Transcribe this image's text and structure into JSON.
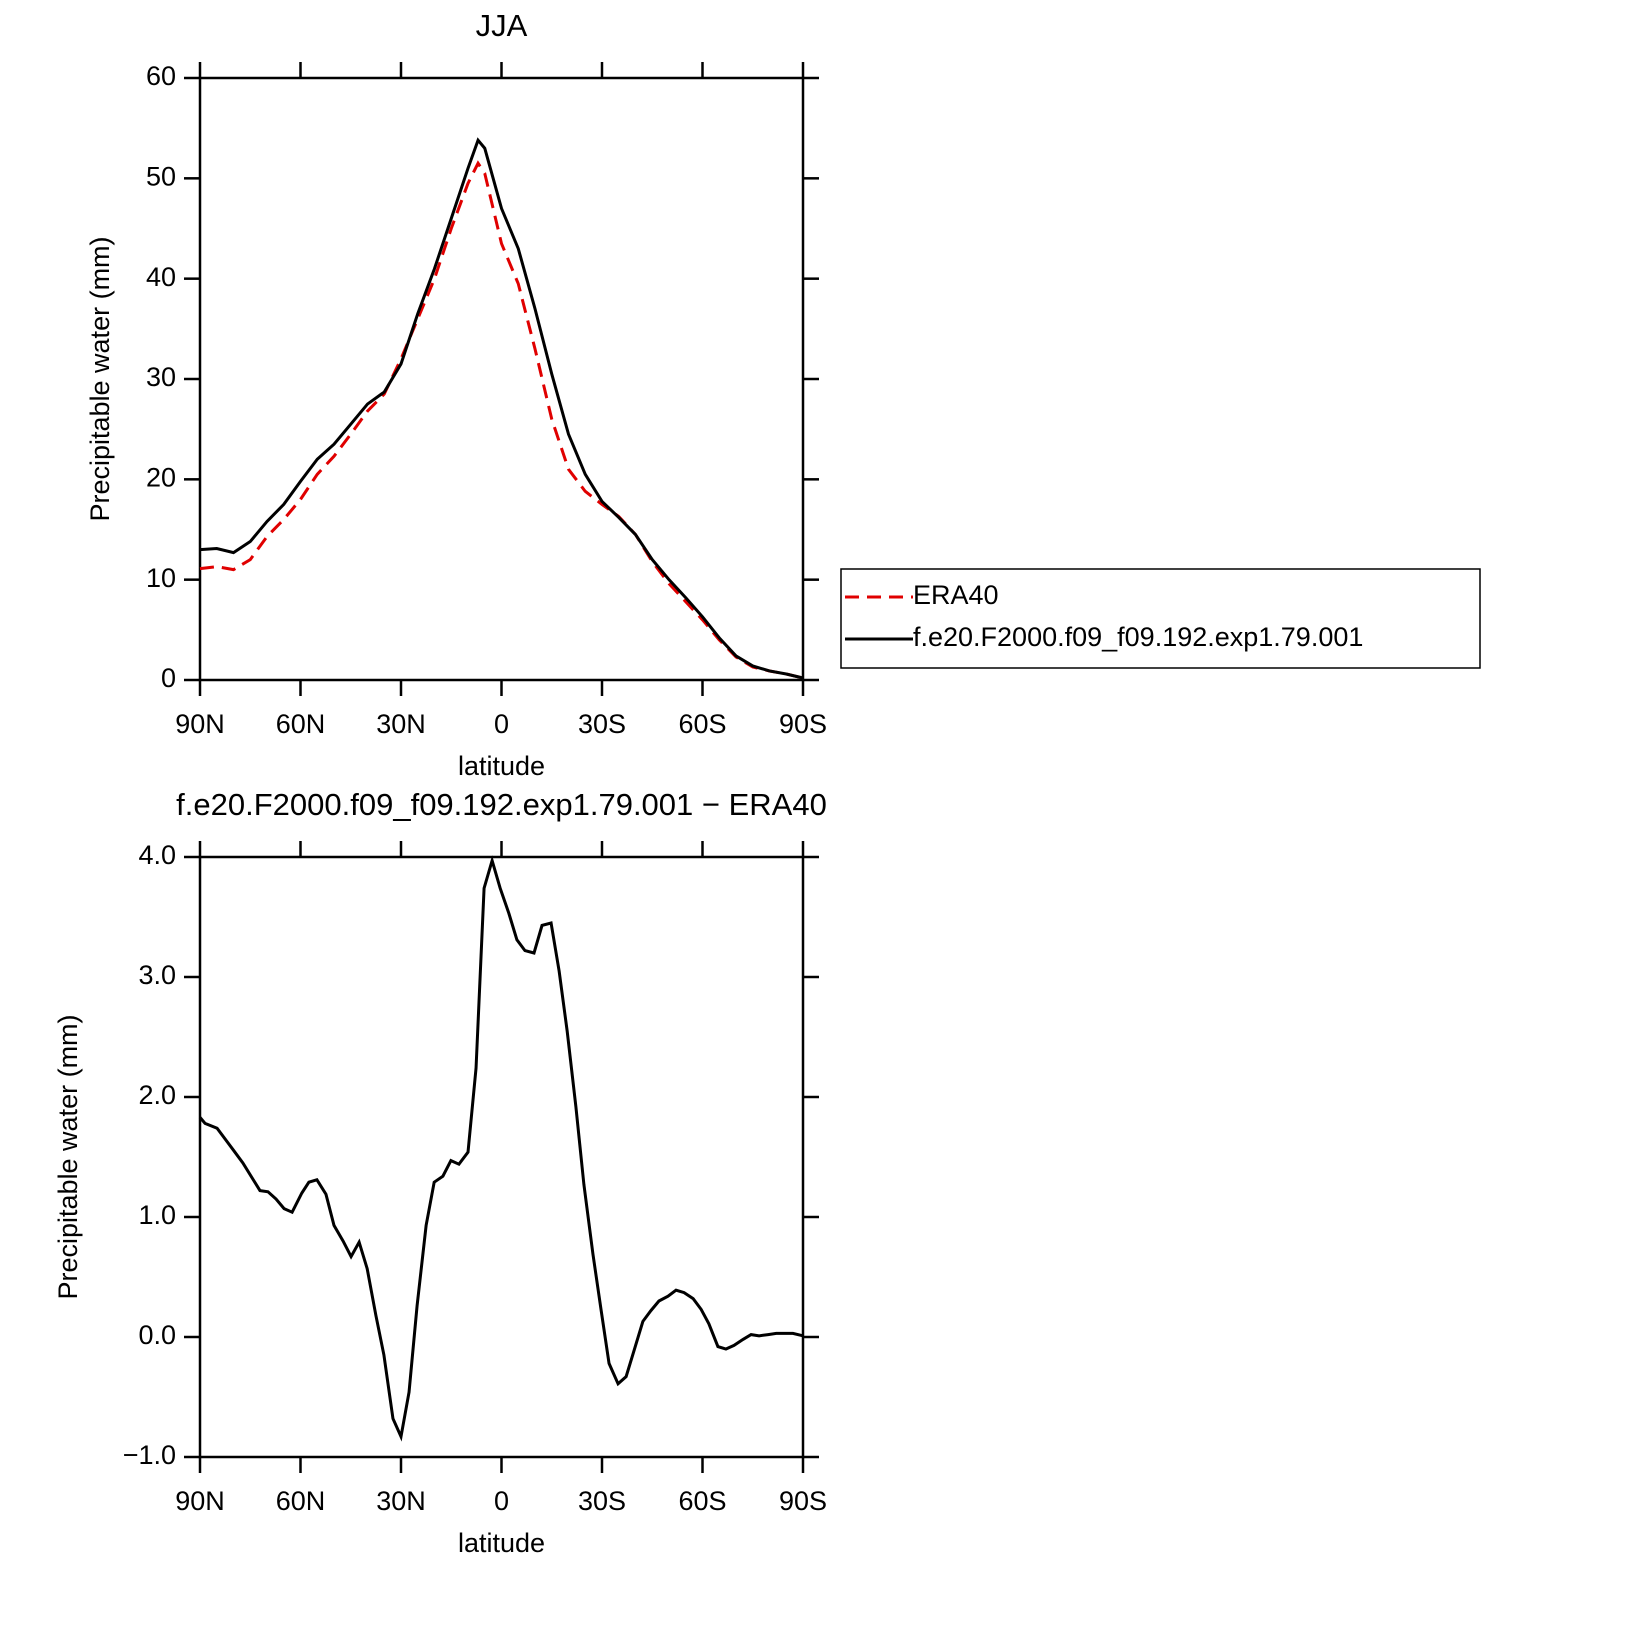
{
  "chart_data": [
    {
      "type": "line",
      "title": "JJA",
      "xlabel": "latitude",
      "ylabel": "Precipitable water (mm)",
      "x": [
        90,
        85,
        80,
        75,
        70,
        65,
        60,
        55,
        50,
        45,
        40,
        35,
        30,
        25,
        20,
        15,
        10,
        7,
        5,
        0,
        -5,
        -10,
        -15,
        -20,
        -25,
        -30,
        -35,
        -40,
        -45,
        -50,
        -55,
        -60,
        -65,
        -70,
        -75,
        -80,
        -85,
        -90
      ],
      "series": [
        {
          "name": "ERA40",
          "color": "#e00000",
          "linestyle": "dashed",
          "values": [
            11.1,
            11.3,
            11.0,
            12.0,
            14.3,
            16.0,
            18.0,
            20.5,
            22.3,
            24.5,
            26.8,
            28.5,
            32,
            36,
            40,
            45,
            49.5,
            51.5,
            50.5,
            43.5,
            39.5,
            33,
            26.0,
            21.0,
            18.8,
            17.5,
            16.3,
            14.5,
            11.8,
            9.6,
            7.8,
            6.0,
            4.0,
            2.3,
            1.3,
            0.9,
            0.6,
            0.2
          ]
        },
        {
          "name": "f.e20.F2000.f09_f09.192.exp1.79.001",
          "color": "#000000",
          "linestyle": "solid",
          "values": [
            13.0,
            13.1,
            12.7,
            13.8,
            15.8,
            17.5,
            19.8,
            22.0,
            23.5,
            25.5,
            27.5,
            28.7,
            31.5,
            36.5,
            41,
            46,
            51,
            53.8,
            53.0,
            47,
            43,
            37,
            30.5,
            24.5,
            20.5,
            17.8,
            16.2,
            14.5,
            12.0,
            10.0,
            8.2,
            6.3,
            4.2,
            2.4,
            1.4,
            0.9,
            0.6,
            0.2
          ]
        }
      ],
      "xlim": [
        90,
        -90
      ],
      "xticks": [
        {
          "value": 90,
          "label": "90N"
        },
        {
          "value": 60,
          "label": "60N"
        },
        {
          "value": 30,
          "label": "30N"
        },
        0,
        {
          "value": -30,
          "label": "30S"
        },
        {
          "value": -60,
          "label": "60S"
        },
        {
          "value": -90,
          "label": "90S"
        }
      ],
      "ylim": [
        0,
        60
      ],
      "yticks": [
        0,
        10,
        20,
        30,
        40,
        50,
        60
      ],
      "legend": "right"
    },
    {
      "type": "line",
      "title": "f.e20.F2000.f09_f09.192.exp1.79.001 − ERA40",
      "xlabel": "latitude",
      "ylabel": "Precipitable water (mm)",
      "x": [
        90,
        88.5,
        84.9,
        80.1,
        77.2,
        72.1,
        69.7,
        67.3,
        64.9,
        62.5,
        59.6,
        57.5,
        55.1,
        52.4,
        50.0,
        47.3,
        44.9,
        42.5,
        40.1,
        37.5,
        35.1,
        32.4,
        30.0,
        27.6,
        25.2,
        22.5,
        20.1,
        17.5,
        15.1,
        12.7,
        10.0,
        7.6,
        5.2,
        2.8,
        0.4,
        -2.2,
        -4.6,
        -7.0,
        -9.7,
        -12.1,
        -14.8,
        -17.2,
        -19.6,
        -22.2,
        -24.6,
        -27.3,
        -29.7,
        -32.1,
        -34.8,
        -37.2,
        -39.6,
        -42.2,
        -44.6,
        -47.0,
        -49.7,
        -52.1,
        -54.5,
        -57.2,
        -59.6,
        -61.9,
        -64.6,
        -67.0,
        -69.4,
        -72.1,
        -74.5,
        -76.9,
        -79.6,
        -82.0,
        -84.3,
        -87.0,
        -90
      ],
      "values": [
        1.83,
        1.78,
        1.74,
        1.56,
        1.45,
        1.22,
        1.21,
        1.15,
        1.07,
        1.04,
        1.2,
        1.29,
        1.31,
        1.19,
        0.93,
        0.8,
        0.67,
        0.79,
        0.57,
        0.18,
        -0.15,
        -0.68,
        -0.83,
        -0.46,
        0.26,
        0.93,
        1.29,
        1.34,
        1.47,
        1.44,
        1.54,
        2.24,
        3.74,
        3.97,
        3.74,
        3.53,
        3.31,
        3.22,
        3.2,
        3.43,
        3.45,
        3.05,
        2.55,
        1.92,
        1.27,
        0.69,
        0.23,
        -0.22,
        -0.39,
        -0.33,
        -0.11,
        0.13,
        0.22,
        0.3,
        0.34,
        0.39,
        0.37,
        0.32,
        0.23,
        0.11,
        -0.08,
        -0.1,
        -0.07,
        -0.02,
        0.02,
        0.01,
        0.02,
        0.03,
        0.03,
        0.03,
        0.01
      ],
      "color": "#000000",
      "xlim": [
        90,
        -90
      ],
      "xticks": [
        {
          "value": 90,
          "label": "90N"
        },
        {
          "value": 60,
          "label": "60N"
        },
        {
          "value": 30,
          "label": "30N"
        },
        0,
        {
          "value": -30,
          "label": "30S"
        },
        {
          "value": -60,
          "label": "60S"
        },
        {
          "value": -90,
          "label": "90S"
        }
      ],
      "ylim": [
        -1,
        4
      ],
      "yticks": [
        {
          "value": -1,
          "label": "−1.0"
        },
        {
          "value": 0,
          "label": "0.0"
        },
        {
          "value": 1,
          "label": "1.0"
        },
        {
          "value": 2,
          "label": "2.0"
        },
        {
          "value": 3,
          "label": "3.0"
        },
        {
          "value": 4,
          "label": "4.0"
        }
      ]
    }
  ]
}
